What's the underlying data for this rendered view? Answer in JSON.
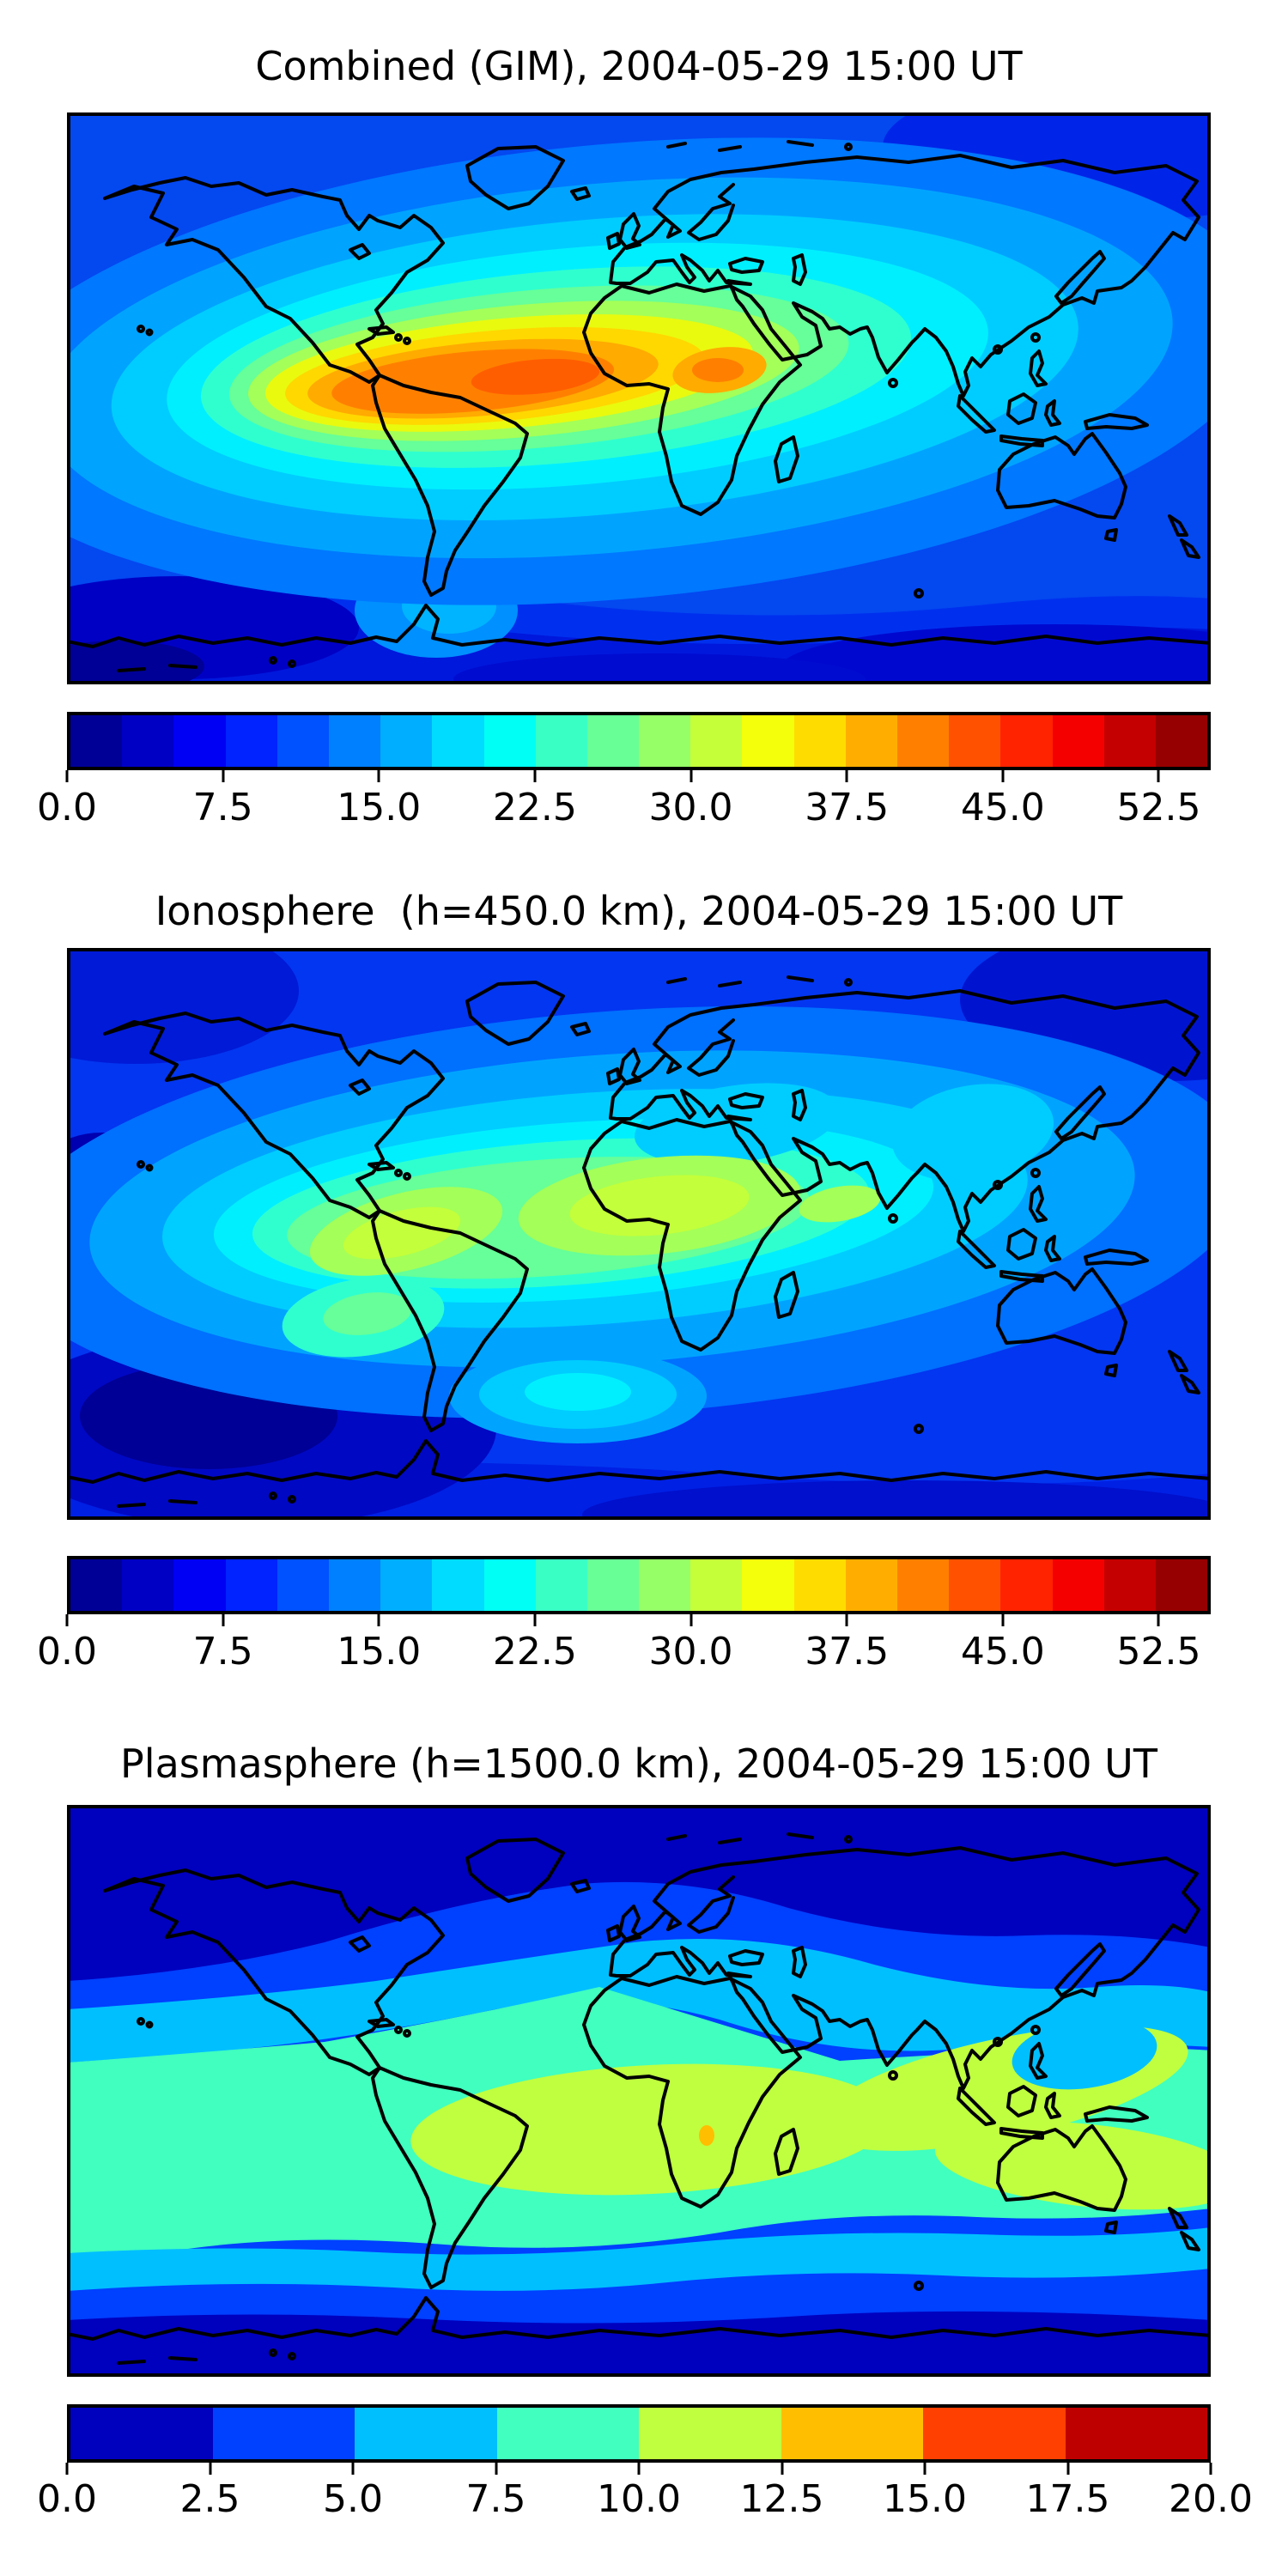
{
  "figure": {
    "background": "#ffffff",
    "coastline_color": "#000000",
    "panels": [
      {
        "id": "combined",
        "title": "Combined (GIM), 2004-05-29 15:00 UT",
        "map": {
          "kind": "filled-contour world map",
          "projection": "equirectangular"
        },
        "colorbar": {
          "orientation": "horizontal",
          "range": [
            0,
            55
          ],
          "level_step": 2.5,
          "ticks": [
            "0.0",
            "7.5",
            "15.0",
            "22.5",
            "30.0",
            "37.5",
            "45.0",
            "52.5"
          ],
          "tick_values": [
            0,
            7.5,
            15,
            22.5,
            30,
            37.5,
            45,
            52.5
          ],
          "colors": [
            "#000096",
            "#0000c5",
            "#0000f4",
            "#0023ff",
            "#0051ff",
            "#0080ff",
            "#00aeff",
            "#00dcff",
            "#00fff4",
            "#3affc5",
            "#68ff96",
            "#96ff68",
            "#c5ff3a",
            "#f4ff0b",
            "#ffdc00",
            "#ffae00",
            "#ff8000",
            "#ff5100",
            "#ff2300",
            "#f40000",
            "#c50000",
            "#960000"
          ]
        }
      },
      {
        "id": "ionosphere",
        "title": "Ionosphere  (h=450.0 km), 2004-05-29 15:00 UT",
        "map": {
          "kind": "filled-contour world map",
          "projection": "equirectangular"
        },
        "colorbar": {
          "orientation": "horizontal",
          "range": [
            0,
            55
          ],
          "level_step": 2.5,
          "ticks": [
            "0.0",
            "7.5",
            "15.0",
            "22.5",
            "30.0",
            "37.5",
            "45.0",
            "52.5"
          ],
          "tick_values": [
            0,
            7.5,
            15,
            22.5,
            30,
            37.5,
            45,
            52.5
          ],
          "colors": [
            "#000096",
            "#0000c5",
            "#0000f4",
            "#0023ff",
            "#0051ff",
            "#0080ff",
            "#00aeff",
            "#00dcff",
            "#00fff4",
            "#3affc5",
            "#68ff96",
            "#96ff68",
            "#c5ff3a",
            "#f4ff0b",
            "#ffdc00",
            "#ffae00",
            "#ff8000",
            "#ff5100",
            "#ff2300",
            "#f40000",
            "#c50000",
            "#960000"
          ]
        }
      },
      {
        "id": "plasmasphere",
        "title": "Plasmasphere (h=1500.0 km), 2004-05-29 15:00 UT",
        "map": {
          "kind": "filled-contour world map",
          "projection": "equirectangular"
        },
        "colorbar": {
          "orientation": "horizontal",
          "range": [
            0,
            20
          ],
          "level_step": 2.5,
          "ticks": [
            "0.0",
            "2.5",
            "5.0",
            "7.5",
            "10.0",
            "12.5",
            "15.0",
            "17.5",
            "20.0"
          ],
          "tick_values": [
            0,
            2.5,
            5,
            7.5,
            10,
            12.5,
            15,
            17.5,
            20
          ],
          "colors": [
            "#0000bf",
            "#0040ff",
            "#00bfff",
            "#40ffbf",
            "#bfff40",
            "#ffbf00",
            "#ff4000",
            "#bf0000"
          ]
        }
      }
    ]
  },
  "chart_data": [
    {
      "type": "heatmap",
      "subtype": "filled contour map (contourf) over world coastlines",
      "title": "Combined (GIM), 2004-05-29 15:00 UT",
      "projection": "equirectangular",
      "lon_range": [
        -180,
        180
      ],
      "lat_range": [
        -90,
        90
      ],
      "colormap": "jet",
      "levels": {
        "min": 0,
        "max": 55,
        "step": 2.5
      },
      "colorbar_ticks": [
        0,
        7.5,
        15,
        22.5,
        30,
        37.5,
        45,
        52.5
      ],
      "estimated_field": {
        "global_min": 2,
        "global_max": 47,
        "max_location": "equatorial Atlantic (~5S-5N, ~30W-10E)",
        "features": [
          "orange crest 40-47 spanning from eastern South America across the Atlantic to West/Central Africa",
          "yellow-gold band 30-40 extending from Peru/Brazil to Arabia and western India",
          "secondary gold maximum ~37 near Sudan/Horn of Africa",
          "cyan 15-25 over Central America, mid-Atlantic, southern Europe and East Asia/Japan",
          "blue 5-12 at high northern latitudes",
          "dark blue 0-7 over southern ocean and Antarctica, minima near the south-west Pacific"
        ]
      }
    },
    {
      "type": "heatmap",
      "subtype": "filled contour map (contourf) over world coastlines",
      "title": "Ionosphere  (h=450.0 km), 2004-05-29 15:00 UT",
      "projection": "equirectangular",
      "lon_range": [
        -180,
        180
      ],
      "lat_range": [
        -90,
        90
      ],
      "colormap": "jet",
      "levels": {
        "min": 0,
        "max": 55,
        "step": 2.5
      },
      "colorbar_ticks": [
        0,
        7.5,
        15,
        22.5,
        30,
        37.5,
        45,
        52.5
      ],
      "estimated_field": {
        "global_min": 1,
        "global_max": 33,
        "max_location": "two green-yellow lobes: central South America and central Africa (~0-15S)",
        "features": [
          "green-yellow lobes 27-33 over Brazil/Peru, central Africa and near Arabia",
          "green-aqua band 20-27 from South America to India",
          "cyan patch 15-20 over Mediterranean/Europe and near the Caspian",
          "aqua-green spot ~20 in the south-east Pacific west of Chile",
          "cyan oval ~15 in the south Atlantic",
          "dark navy minima 0-5 at left mid-latitudes, south-west Pacific and along the bottom edge"
        ]
      }
    },
    {
      "type": "heatmap",
      "subtype": "filled contour map (contourf) over world coastlines",
      "title": "Plasmasphere (h=1500.0 km), 2004-05-29 15:00 UT",
      "projection": "equirectangular",
      "lon_range": [
        -180,
        180
      ],
      "lat_range": [
        -90,
        90
      ],
      "colormap": "jet",
      "levels": {
        "min": 0,
        "max": 20,
        "step": 2.5
      },
      "colorbar_ticks": [
        0,
        2.5,
        5,
        7.5,
        10,
        12.5,
        15,
        17.5,
        20
      ],
      "estimated_field": {
        "global_min": 1,
        "global_max": 13,
        "max_location": "equatorial band, strongest from Africa to South-East Asia",
        "features": [
          "smooth zonal (latitudinal) bands decreasing from equator to poles",
          "green-yellow band 10-12.5 from equatorial South America across Africa, India and Indonesia",
          "tiny gold spot 12.5-15 over central/southern Africa",
          "aqua 7.5-10 flanking the equatorial band; sky-cyan 5-7.5 next",
          "small cyan 5-7.5 pocket east of the Philippines",
          "blue 2.5-5 and dark navy 0-2.5 toward both poles"
        ]
      }
    }
  ]
}
